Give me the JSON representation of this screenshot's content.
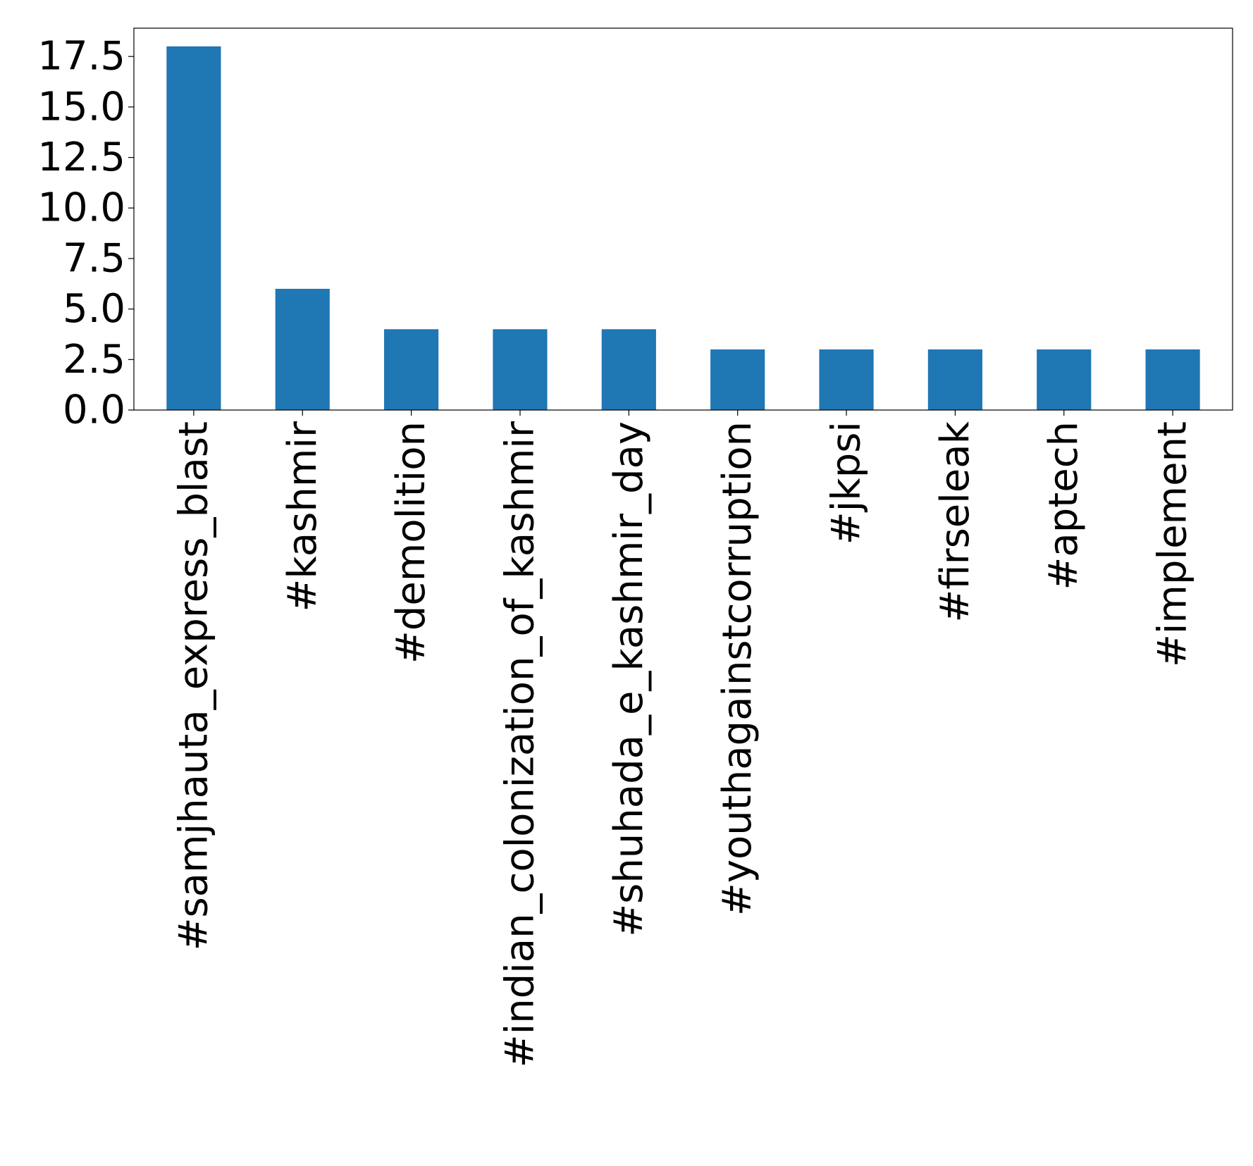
{
  "chart_data": {
    "type": "bar",
    "title": "",
    "xlabel": "",
    "ylabel": "",
    "categories": [
      "#samjhauta_express_blast",
      "#kashmir",
      "#demolition",
      "#indian_colonization_of_kashmir",
      "#shuhada_e_kashmir_day",
      "#youthagainstcorruption",
      "#jkpsi",
      "#firseleak",
      "#aptech",
      "#implement"
    ],
    "values": [
      18,
      6,
      4,
      4,
      4,
      3,
      3,
      3,
      3,
      3
    ],
    "ylim": [
      0,
      18.9
    ],
    "yticks": [
      "0.0",
      "2.5",
      "5.0",
      "7.5",
      "10.0",
      "12.5",
      "15.0",
      "17.5"
    ],
    "grid": false,
    "legend": "none",
    "bar_color": "#1f77b4"
  }
}
